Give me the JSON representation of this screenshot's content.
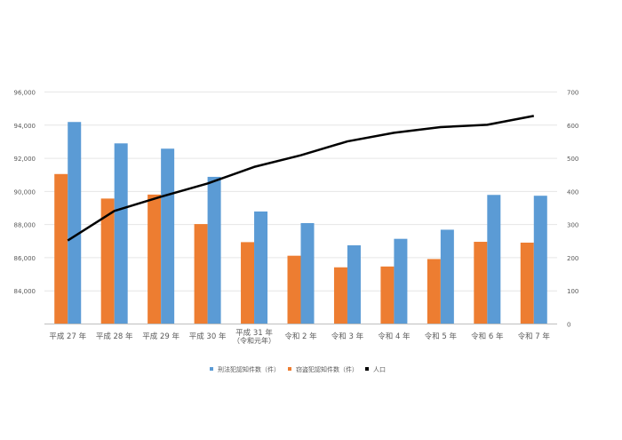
{
  "chart_data": {
    "type": "bar+line",
    "title": "",
    "categories": [
      "平成 27 年",
      "平成 28 年",
      "平成 29 年",
      "平成 30 年",
      [
        "平成 31 年",
        "（令和元年）"
      ],
      "令和 2 年",
      "令和 3 年",
      "令和 4 年",
      "令和 5 年",
      "令和 6 年",
      "令和 7 年"
    ],
    "y_left": {
      "min": 82000,
      "max": 96000,
      "step": 2000,
      "ticks": [
        "",
        "84,000",
        "86,000",
        "88,000",
        "90,000",
        "92,000",
        "94,000",
        "96,000"
      ]
    },
    "y_right": {
      "min": 0,
      "max": 700,
      "step": 100,
      "ticks": [
        "0",
        "100",
        "200",
        "300",
        "400",
        "500",
        "600",
        "700"
      ]
    },
    "grid": true,
    "legend_position": "bottom",
    "series": [
      {
        "name": "窃盗犯認知件数（件）",
        "type": "bar",
        "axis": "left",
        "color": "#ED7D31",
        "values": [
          91050,
          89570,
          89810,
          88030,
          86940,
          86120,
          85420,
          85470,
          85920,
          86960,
          86910
        ]
      },
      {
        "name": "刑法犯認知件数（件）",
        "type": "bar",
        "axis": "left",
        "color": "#5B9BD5",
        "values": [
          94190,
          92900,
          92580,
          90880,
          88790,
          88090,
          86750,
          87140,
          87690,
          89790,
          89740
        ]
      },
      {
        "name": "人口",
        "type": "line",
        "axis": "right",
        "color": "#000000",
        "values": [
          252,
          341,
          384,
          424,
          474,
          509,
          551,
          577,
          594,
          601,
          628
        ]
      }
    ],
    "legend_order": [
      1,
      0,
      2
    ]
  }
}
